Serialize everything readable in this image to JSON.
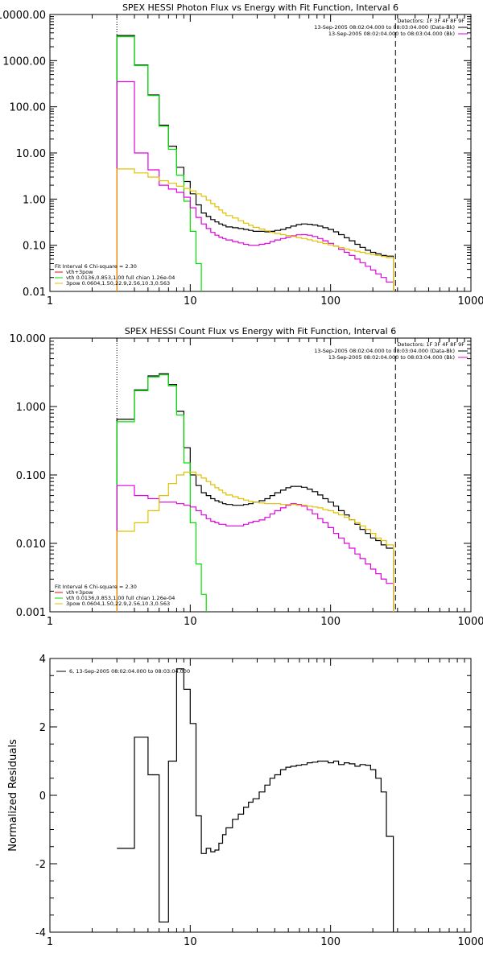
{
  "colors": {
    "black": "#000000",
    "red": "#ff0000",
    "green": "#00e000",
    "magenta": "#e000e0",
    "yellow": "#e0c000",
    "orange": "#ff8c00"
  },
  "chart_data": [
    {
      "type": "line",
      "step": true,
      "title": "SPEX HESSI Photon Flux vs Energy with Fit Function, Interval 6",
      "xscale": "log",
      "yscale": "log",
      "xlim": [
        1,
        1000
      ],
      "ylim": [
        0.01,
        10000
      ],
      "xticks": [
        1,
        10,
        100,
        1000
      ],
      "xtick_labels": [
        "1",
        "10",
        "100",
        "1000"
      ],
      "yticks": [
        0.01,
        0.1,
        1,
        10,
        100,
        1000,
        10000
      ],
      "ytick_labels": [
        "0.01",
        "0.10",
        "1.00",
        "10.00",
        "100.00",
        "1000.00",
        "10000.00"
      ],
      "vlines": [
        {
          "x": 3,
          "style": "dotted"
        },
        {
          "x": 290,
          "style": "dashed"
        }
      ],
      "legend_top": [
        "Detectors: 1F 3F 4F 8F 9F",
        "13-Sep-2005 08:02:04.000 to 08:03:04.000 (Data-Bk)",
        "13-Sep-2005 08:02:04.000 to 08:03:04.000 (Bk)"
      ],
      "legend_bottom": [
        "Fit Interval 6   Chi-square = 2.30",
        "vth+3pow",
        "vth 0.0136,0.853,1.00  full chian 1.26e-04",
        "3pow 0.0604,1.50,22.9,2.56,10.3,0.563"
      ],
      "edges": [
        3,
        4,
        5,
        6,
        7,
        8,
        9,
        10,
        11,
        12,
        13,
        14,
        15,
        16,
        17,
        18,
        20,
        22,
        24,
        26,
        28,
        31,
        34,
        37,
        40,
        44,
        48,
        52,
        57,
        62,
        68,
        74,
        81,
        88,
        96,
        105,
        114,
        125,
        136,
        149,
        162,
        177,
        193,
        210,
        229,
        250,
        280
      ],
      "series": [
        {
          "color": "black",
          "values": [
            3500,
            800,
            180,
            40,
            14,
            4.9,
            2.4,
            1.3,
            0.75,
            0.5,
            0.42,
            0.36,
            0.32,
            0.29,
            0.27,
            0.25,
            0.24,
            0.23,
            0.22,
            0.21,
            0.2,
            0.2,
            0.195,
            0.2,
            0.21,
            0.22,
            0.24,
            0.26,
            0.28,
            0.29,
            0.285,
            0.275,
            0.26,
            0.24,
            0.22,
            0.195,
            0.17,
            0.145,
            0.125,
            0.105,
            0.09,
            0.078,
            0.07,
            0.065,
            0.06,
            0.058
          ]
        },
        {
          "color": "green",
          "values": [
            3300,
            780,
            175,
            38,
            12,
            3.3,
            0.9,
            0.2,
            0.04,
            0.008,
            0.0015
          ]
        },
        {
          "color": "magenta",
          "values": [
            350,
            10,
            4.3,
            2.0,
            1.65,
            1.4,
            1.1,
            0.65,
            0.4,
            0.29,
            0.23,
            0.19,
            0.165,
            0.15,
            0.14,
            0.13,
            0.12,
            0.112,
            0.105,
            0.1,
            0.1,
            0.105,
            0.11,
            0.12,
            0.13,
            0.14,
            0.15,
            0.16,
            0.168,
            0.17,
            0.165,
            0.155,
            0.14,
            0.125,
            0.11,
            0.095,
            0.082,
            0.07,
            0.06,
            0.05,
            0.042,
            0.035,
            0.029,
            0.024,
            0.02,
            0.016
          ]
        },
        {
          "color": "yellow",
          "values": [
            4.5,
            3.7,
            3.0,
            2.5,
            2.2,
            1.9,
            1.7,
            1.5,
            1.3,
            1.15,
            0.95,
            0.8,
            0.68,
            0.58,
            0.5,
            0.44,
            0.39,
            0.34,
            0.3,
            0.27,
            0.245,
            0.225,
            0.205,
            0.19,
            0.18,
            0.17,
            0.162,
            0.155,
            0.147,
            0.14,
            0.132,
            0.124,
            0.116,
            0.109,
            0.102,
            0.095,
            0.089,
            0.083,
            0.078,
            0.074,
            0.07,
            0.066,
            0.063,
            0.06,
            0.057,
            0.054
          ]
        }
      ]
    },
    {
      "type": "line",
      "step": true,
      "title": "SPEX HESSI Count Flux vs Energy with Fit Function, Interval 6",
      "xscale": "log",
      "yscale": "log",
      "xlim": [
        1,
        1000
      ],
      "ylim": [
        0.001,
        10
      ],
      "xticks": [
        1,
        10,
        100,
        1000
      ],
      "xtick_labels": [
        "1",
        "10",
        "100",
        "1000"
      ],
      "yticks": [
        0.001,
        0.01,
        0.1,
        1,
        10
      ],
      "ytick_labels": [
        "0.001",
        "0.010",
        "0.100",
        "1.000",
        "10.000"
      ],
      "vlines": [
        {
          "x": 3,
          "style": "dotted"
        },
        {
          "x": 290,
          "style": "dashed"
        }
      ],
      "legend_top": [
        "Detectors: 1F 3F 4F 8F 9F",
        "13-Sep-2005 08:02:04.000 to 08:03:04.000 (Data-Bk)",
        "13-Sep-2005 08:02:04.000 to 08:03:04.000 (Bk)"
      ],
      "legend_bottom": [
        "Fit Interval 6   Chi-square = 2.30",
        "vth+3pow",
        "vth 0.0136,0.853,1.00  full chian 1.26e-04",
        "3pow 0.0604,1.50,22.9,2.56,10.3,0.563"
      ],
      "edges": [
        3,
        4,
        5,
        6,
        7,
        8,
        9,
        10,
        11,
        12,
        13,
        14,
        15,
        16,
        17,
        18,
        20,
        22,
        24,
        26,
        28,
        31,
        34,
        37,
        40,
        44,
        48,
        52,
        57,
        62,
        68,
        74,
        81,
        88,
        96,
        105,
        114,
        125,
        136,
        149,
        162,
        177,
        193,
        210,
        229,
        250,
        280
      ],
      "series": [
        {
          "color": "black",
          "values": [
            0.65,
            1.75,
            2.8,
            3.0,
            2.1,
            0.85,
            0.25,
            0.1,
            0.07,
            0.055,
            0.05,
            0.045,
            0.042,
            0.04,
            0.038,
            0.037,
            0.036,
            0.036,
            0.037,
            0.038,
            0.04,
            0.042,
            0.045,
            0.05,
            0.055,
            0.06,
            0.065,
            0.068,
            0.068,
            0.066,
            0.062,
            0.057,
            0.051,
            0.045,
            0.04,
            0.035,
            0.03,
            0.026,
            0.022,
            0.019,
            0.016,
            0.014,
            0.012,
            0.011,
            0.0095,
            0.0085
          ]
        },
        {
          "color": "green",
          "values": [
            0.6,
            1.7,
            2.7,
            2.9,
            2.0,
            0.75,
            0.15,
            0.02,
            0.005,
            0.0018,
            0.0006
          ]
        },
        {
          "color": "magenta",
          "values": [
            0.07,
            0.05,
            0.045,
            0.04,
            0.04,
            0.038,
            0.036,
            0.034,
            0.03,
            0.026,
            0.023,
            0.021,
            0.02,
            0.019,
            0.019,
            0.018,
            0.018,
            0.018,
            0.019,
            0.02,
            0.021,
            0.022,
            0.024,
            0.027,
            0.03,
            0.033,
            0.036,
            0.038,
            0.037,
            0.035,
            0.031,
            0.027,
            0.023,
            0.02,
            0.017,
            0.014,
            0.012,
            0.01,
            0.0085,
            0.007,
            0.006,
            0.005,
            0.0042,
            0.0036,
            0.003,
            0.0026
          ]
        },
        {
          "color": "yellow",
          "values": [
            0.015,
            0.02,
            0.03,
            0.05,
            0.075,
            0.1,
            0.11,
            0.11,
            0.1,
            0.09,
            0.08,
            0.072,
            0.065,
            0.06,
            0.055,
            0.051,
            0.048,
            0.045,
            0.043,
            0.041,
            0.04,
            0.039,
            0.038,
            0.038,
            0.038,
            0.037,
            0.037,
            0.037,
            0.036,
            0.036,
            0.035,
            0.034,
            0.033,
            0.031,
            0.03,
            0.028,
            0.026,
            0.024,
            0.022,
            0.02,
            0.018,
            0.016,
            0.014,
            0.012,
            0.011,
            0.0095
          ]
        }
      ]
    },
    {
      "type": "line",
      "step": true,
      "ylabel": "Normalized Residuals",
      "xscale": "log",
      "yscale": "linear",
      "xlim": [
        1,
        1000
      ],
      "ylim": [
        -4,
        4
      ],
      "xticks": [
        1,
        10,
        100,
        1000
      ],
      "xtick_labels": [
        "1",
        "10",
        "100",
        "1000"
      ],
      "yticks": [
        -4,
        -2,
        0,
        2,
        4
      ],
      "ytick_labels": [
        "-4",
        "-2",
        "0",
        "2",
        "4"
      ],
      "legend_top": [
        "6, 13-Sep-2005 08:02:04.000 to 08:03:04.000"
      ],
      "edges": [
        3,
        4,
        5,
        6,
        7,
        8,
        9,
        10,
        11,
        12,
        13,
        14,
        15,
        16,
        17,
        18,
        20,
        22,
        24,
        26,
        28,
        31,
        34,
        37,
        40,
        44,
        48,
        52,
        57,
        62,
        68,
        74,
        81,
        88,
        96,
        105,
        114,
        125,
        136,
        149,
        162,
        177,
        193,
        210,
        229,
        250,
        280
      ],
      "series": [
        {
          "color": "black",
          "values": [
            -1.55,
            1.7,
            0.6,
            -3.7,
            1.0,
            3.7,
            3.1,
            2.1,
            -0.6,
            -1.7,
            -1.55,
            -1.65,
            -1.6,
            -1.4,
            -1.15,
            -0.95,
            -0.7,
            -0.55,
            -0.35,
            -0.2,
            -0.1,
            0.1,
            0.3,
            0.5,
            0.6,
            0.75,
            0.82,
            0.85,
            0.88,
            0.9,
            0.95,
            0.97,
            1.0,
            1.0,
            0.95,
            1.0,
            0.9,
            0.95,
            0.92,
            0.85,
            0.9,
            0.88,
            0.75,
            0.5,
            0.1,
            -1.2
          ]
        }
      ]
    }
  ]
}
